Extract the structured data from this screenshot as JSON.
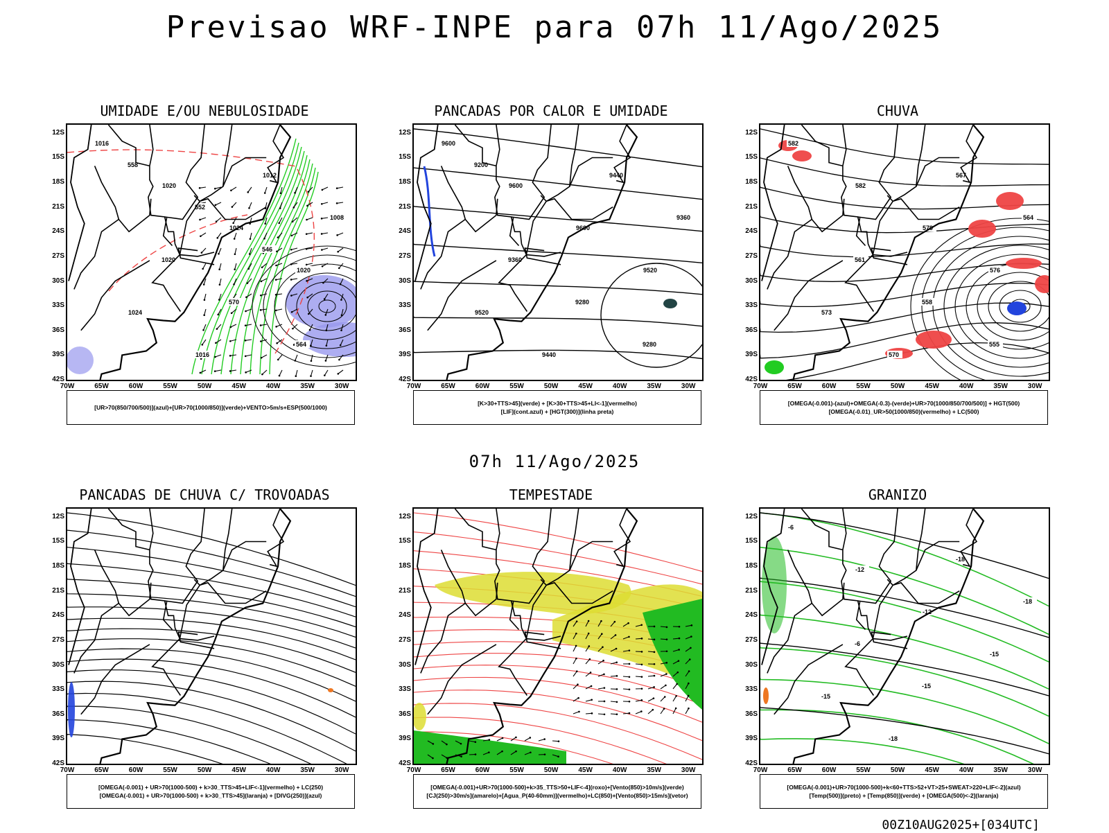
{
  "title": "Previsao WRF-INPE  para 07h 11/Ago/2025",
  "mid_title": "07h 11/Ago/2025",
  "footer": "00Z10AUG2025+[034UTC]",
  "lat_labels": [
    "12S",
    "15S",
    "18S",
    "21S",
    "24S",
    "27S",
    "30S",
    "33S",
    "36S",
    "39S",
    "42S"
  ],
  "lon_labels": [
    "70W",
    "65W",
    "60W",
    "55W",
    "50W",
    "45W",
    "40W",
    "35W",
    "30W"
  ],
  "panels": [
    {
      "title": "UMIDADE E/OU NEBULOSIDADE",
      "legend": [
        "[UR>70(850/700/500)](azul)+[UR>70(1000/850)](verde)+VENTO>5m/s+ESP(500/1000)"
      ],
      "contour_labels": [
        "1016",
        "1020",
        "1024",
        "1020",
        "1024",
        "1016",
        "1012",
        "1008",
        "1020",
        "570",
        "564",
        "558",
        "552",
        "546"
      ]
    },
    {
      "title": "PANCADAS POR CALOR E UMIDADE",
      "legend": [
        "[K>30+TTS>45](verde) + [K>30+TTS>45+LI<-1](vermelho)",
        "[LIF](cont.azul) + [HGT(300)](linha preta)"
      ],
      "contour_labels": [
        "9600",
        "9600",
        "9600",
        "9520",
        "9520",
        "9440",
        "9440",
        "9360",
        "9360",
        "9280",
        "9280",
        "9200"
      ]
    },
    {
      "title": "CHUVA",
      "legend": [
        "[OMEGA(-0.001)-(azul)+OMEGA(-0.3)-(verde)+UR>70(1000/850/700/500)] + HGT(500)",
        "[OMEGA(-0.01)_UR>50(1000/850)(vermelho) + LC(500)"
      ],
      "contour_labels": [
        "582",
        "582",
        "579",
        "576",
        "573",
        "570",
        "567",
        "564",
        "561",
        "558",
        "555"
      ]
    },
    {
      "title": "PANCADAS DE CHUVA C/ TROVOADAS",
      "legend": [
        "[OMEGA(-0.001) + UR>70(1000-500) + k>30_TTS>45+LIF<-1](vermelho) + LC(250)",
        "[OMEGA(-0.001) + UR>70(1000-500) + k>30_TTS>45](laranja) + [DIVG(250)](azul)"
      ],
      "contour_labels": []
    },
    {
      "title": "TEMPESTADE",
      "legend": [
        "[OMEGA(-0.001)+UR>70(1000-500)+k>35_TTS>50+LIF<-4](roxo)+[Vento(850)>10m/s](verde)",
        "[CJ(250)>30m/s](amarelo)+[Agua_P(40-60mm)](vermelho)+LC(850)+[Vento(850)>15m/s](vetor)"
      ],
      "contour_labels": []
    },
    {
      "title": "GRANIZO",
      "legend": [
        "[OMEGA(-0.001)+UR>70(1000-500)+k<60+TTS>52+VT>25+SWEAT>220+LIF<-2](azul)",
        "[Temp(500)](preto) + [Temp(850)](verde) + [OMEGA(500)<-2](laranja)"
      ],
      "contour_labels": [
        "-6",
        "-12",
        "-12",
        "-15",
        "-15",
        "-18",
        "-18",
        "-18",
        "-6",
        "-15"
      ]
    }
  ],
  "colors": {
    "coast": "#000000",
    "wet_mid": "#9999ee",
    "wet_low": "#22cc22",
    "rain": "#ee4444",
    "jet": "#dddd33",
    "wind": "#22bb22",
    "lif": "#2244dd",
    "orange": "#ee7722"
  }
}
